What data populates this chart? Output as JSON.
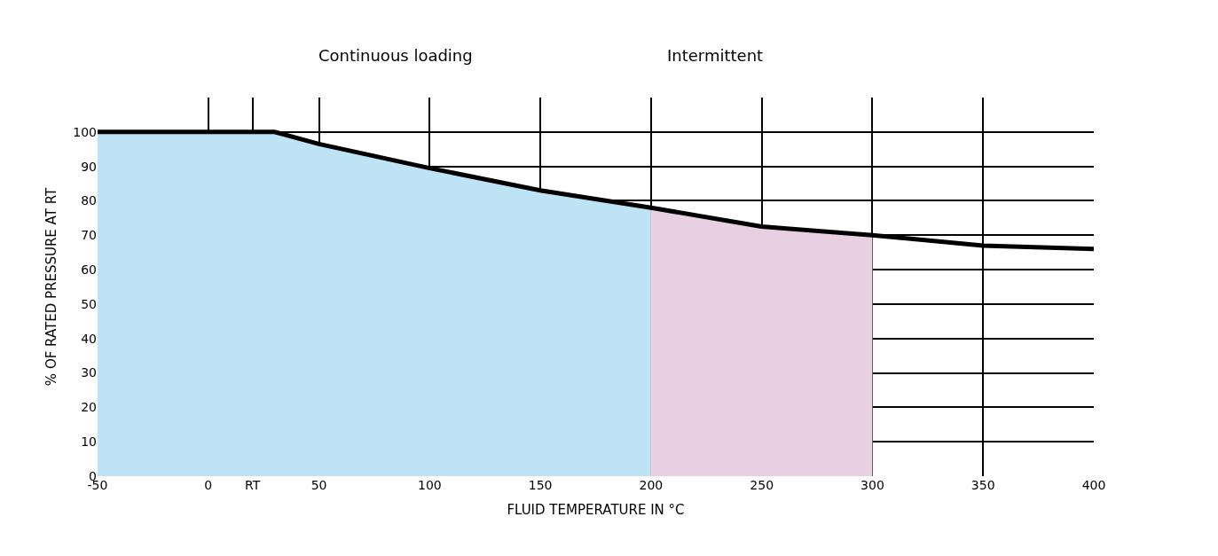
{
  "chart_data": {
    "type": "line",
    "xlabel": "FLUID TEMPERATURE IN °C",
    "ylabel": "% OF RATED PRESSURE AT RT",
    "annotations": [
      "Continuous loading",
      "Intermittent"
    ],
    "series": [
      {
        "type": "area",
        "color": "#bde3f5",
        "x": [
          -50,
          0,
          30,
          50,
          100,
          150,
          200
        ],
        "values": [
          100,
          100,
          100,
          96.5,
          89.5,
          83,
          78
        ]
      },
      {
        "type": "area",
        "color": "#e8d0e2",
        "x": [
          200,
          250,
          300
        ],
        "values": [
          78,
          72.5,
          70
        ]
      },
      {
        "color": "#000000",
        "x": [
          -50,
          0,
          30,
          50,
          100,
          150,
          200,
          250,
          300,
          350,
          400
        ],
        "values": [
          100,
          100,
          100,
          96.5,
          89.5,
          83,
          78,
          72.5,
          70,
          67,
          66
        ]
      }
    ],
    "xlim": [
      -50,
      400
    ],
    "xticks": [
      -50,
      0,
      {
        "value": 20,
        "label": "RT"
      },
      50,
      100,
      150,
      200,
      250,
      300,
      350,
      400
    ],
    "ylim": [
      0,
      110
    ],
    "yticks": [
      0,
      10,
      20,
      30,
      40,
      50,
      60,
      70,
      80,
      90,
      100
    ],
    "grid": true,
    "legend": false,
    "marker": "none",
    "line_style": "solid"
  }
}
